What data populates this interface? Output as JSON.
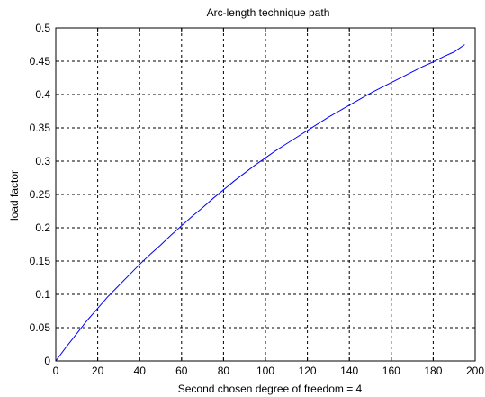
{
  "chart_data": {
    "type": "line",
    "title": "Arc-length technique path",
    "xlabel": "Second chosen degree of freedom = 4",
    "ylabel": "load factor",
    "xlim": [
      0,
      200
    ],
    "ylim": [
      0,
      0.5
    ],
    "x_ticks": [
      "0",
      "20",
      "40",
      "60",
      "80",
      "100",
      "120",
      "140",
      "160",
      "180",
      "200"
    ],
    "y_ticks": [
      "0",
      "0.05",
      "0.1",
      "0.15",
      "0.2",
      "0.25",
      "0.3",
      "0.35",
      "0.4",
      "0.45",
      "0.5"
    ],
    "grid": true,
    "series": [
      {
        "color": "#0000ff",
        "x": [
          0,
          5,
          10,
          15,
          20,
          25,
          30,
          35,
          40,
          45,
          50,
          55,
          60,
          65,
          70,
          75,
          80,
          85,
          90,
          95,
          100,
          105,
          110,
          115,
          120,
          125,
          130,
          135,
          140,
          145,
          150,
          155,
          160,
          165,
          170,
          175,
          180,
          185,
          190,
          195
        ],
        "values": [
          0,
          0.021,
          0.041,
          0.061,
          0.079,
          0.097,
          0.113,
          0.129,
          0.145,
          0.16,
          0.174,
          0.189,
          0.203,
          0.217,
          0.23,
          0.244,
          0.257,
          0.27,
          0.282,
          0.294,
          0.305,
          0.316,
          0.326,
          0.336,
          0.346,
          0.356,
          0.366,
          0.375,
          0.384,
          0.393,
          0.402,
          0.41,
          0.418,
          0.426,
          0.434,
          0.442,
          0.449,
          0.457,
          0.464,
          0.475
        ]
      }
    ]
  }
}
